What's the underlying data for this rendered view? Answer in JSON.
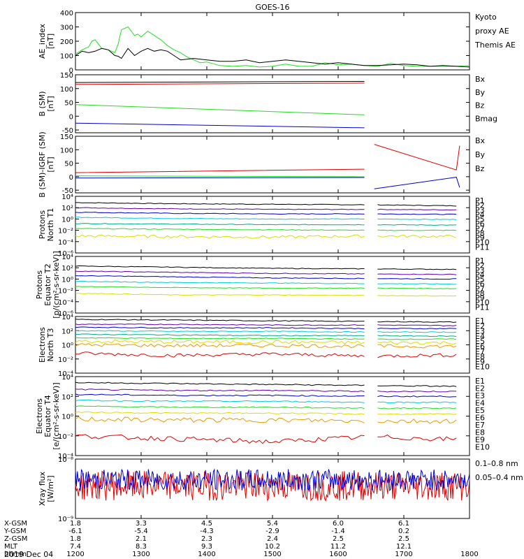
{
  "title": "GOES-16",
  "date_label": "2019 Dec 04",
  "colors": {
    "black": "#000000",
    "red": "#e00000",
    "green": "#22dd22",
    "blue": "#0000cc",
    "cyan": "#00ccdd",
    "teal": "#00aa88",
    "yellow": "#dddd00",
    "orange": "#ee9900",
    "magenta": "#aa0088",
    "purple": "#6600aa",
    "ltgreen": "#88ee00"
  },
  "chart_data": [
    {
      "type": "line",
      "ylabel": [
        "AE_index",
        "[nT]"
      ],
      "ylim": [
        0,
        400
      ],
      "yticks": [
        "0",
        "100",
        "200",
        "300",
        "400"
      ],
      "legend": [
        {
          "text": "Kyoto",
          "color": "green"
        },
        {
          "text": "proxy AE",
          "color": "green"
        },
        {
          "text": "Themis AE",
          "color": "black"
        }
      ],
      "series": [
        {
          "color": "green",
          "x": [
            1200,
            1210,
            1220,
            1225,
            1230,
            1240,
            1250,
            1260,
            1265,
            1270,
            1280,
            1290,
            1295,
            1300,
            1305,
            1310,
            1320,
            1330,
            1340,
            1350,
            1360,
            1370,
            1380,
            1390,
            1400,
            1420,
            1440,
            1460,
            1480,
            1500,
            1520,
            1540,
            1560,
            1580,
            1600,
            1620,
            1640,
            1660,
            1680,
            1700,
            1720,
            1740,
            1760,
            1780,
            1800
          ],
          "y": [
            110,
            140,
            160,
            200,
            210,
            150,
            140,
            120,
            180,
            280,
            300,
            240,
            250,
            230,
            250,
            270,
            240,
            210,
            170,
            140,
            120,
            90,
            70,
            50,
            55,
            30,
            25,
            30,
            20,
            25,
            40,
            25,
            25,
            50,
            35,
            40,
            30,
            25,
            45,
            30,
            25,
            25,
            25,
            25,
            30
          ]
        },
        {
          "color": "black",
          "x": [
            1200,
            1210,
            1220,
            1230,
            1240,
            1250,
            1260,
            1265,
            1270,
            1280,
            1290,
            1300,
            1310,
            1320,
            1330,
            1340,
            1350,
            1360,
            1380,
            1400,
            1420,
            1440,
            1460,
            1480,
            1500,
            1520,
            1540,
            1560,
            1580,
            1600,
            1620,
            1640,
            1660,
            1680,
            1700,
            1720,
            1740,
            1760,
            1780,
            1800
          ],
          "y": [
            100,
            130,
            120,
            130,
            150,
            140,
            100,
            95,
            80,
            150,
            100,
            130,
            150,
            130,
            140,
            130,
            100,
            70,
            80,
            70,
            60,
            60,
            70,
            50,
            60,
            70,
            60,
            50,
            40,
            50,
            40,
            30,
            30,
            35,
            40,
            35,
            25,
            30,
            25,
            20
          ]
        }
      ]
    },
    {
      "type": "line",
      "ylabel": [
        "B (SM)",
        "[nT]"
      ],
      "ylim": [
        -60,
        150
      ],
      "yticks": [
        "-50",
        "0",
        "50",
        "100",
        "150"
      ],
      "legend": [
        {
          "text": "Bx",
          "color": "blue"
        },
        {
          "text": "By",
          "color": "green"
        },
        {
          "text": "Bz",
          "color": "red"
        },
        {
          "text": "Bmag",
          "color": "black"
        }
      ],
      "series": [
        {
          "color": "black",
          "x": [
            1200,
            1640,
            1650,
            1780
          ],
          "y": [
            122,
            126,
            null,
            128
          ]
        },
        {
          "color": "red",
          "x": [
            1200,
            1640,
            1650,
            1780
          ],
          "y": [
            115,
            120,
            null,
            118
          ]
        },
        {
          "color": "green",
          "x": [
            1200,
            1640,
            1650,
            1780
          ],
          "y": [
            42,
            5,
            null,
            -12
          ]
        },
        {
          "color": "blue",
          "x": [
            1200,
            1640,
            1650,
            1780
          ],
          "y": [
            -25,
            -42,
            null,
            -50
          ]
        }
      ]
    },
    {
      "type": "line",
      "ylabel": [
        "B (SM)-IGRF (SM)",
        "[nT]"
      ],
      "ylim": [
        -60,
        150
      ],
      "yticks": [
        "-50",
        "0",
        "50",
        "100",
        "150"
      ],
      "legend": [
        {
          "text": "Bx",
          "color": "blue"
        },
        {
          "text": "By",
          "color": "green"
        },
        {
          "text": "Bz",
          "color": "red"
        }
      ],
      "series": [
        {
          "color": "red",
          "x": [
            1200,
            1640,
            1650,
            1655,
            1780,
            1785
          ],
          "y": [
            15,
            28,
            null,
            120,
            25,
            115
          ]
        },
        {
          "color": "green",
          "x": [
            1200,
            1640,
            1650,
            1780
          ],
          "y": [
            3,
            0,
            null,
            -3
          ]
        },
        {
          "color": "blue",
          "x": [
            1200,
            1640,
            1650,
            1655,
            1780,
            1785
          ],
          "y": [
            -5,
            -3,
            null,
            -45,
            -2,
            -40
          ]
        }
      ]
    },
    {
      "type": "line",
      "ylabel": [
        "Protons",
        "North T1"
      ],
      "ylog": true,
      "ylim_exp": [
        -6,
        4
      ],
      "yticks": [
        "10⁻⁶",
        "10⁻⁴",
        "10⁻²",
        "10⁰",
        "10²",
        "10⁴"
      ],
      "legend": [
        {
          "text": "P1",
          "color": "black"
        },
        {
          "text": "P2",
          "color": "purple"
        },
        {
          "text": "P3",
          "color": "blue"
        },
        {
          "text": "P4",
          "color": "blue"
        },
        {
          "text": "P5",
          "color": "cyan"
        },
        {
          "text": "P6",
          "color": "teal"
        },
        {
          "text": "P7",
          "color": "green"
        },
        {
          "text": "P8",
          "color": "yellow"
        },
        {
          "text": "P9",
          "color": "orange"
        },
        {
          "text": "P10",
          "color": "red"
        },
        {
          "text": "P11",
          "color": "red"
        }
      ],
      "series": [
        {
          "color": "black",
          "logy": [
            2.9,
            2.7,
            2.6,
            2.5,
            2.3
          ]
        },
        {
          "color": "purple",
          "logy": [
            2.0,
            1.8,
            1.7,
            1.7,
            1.6
          ]
        },
        {
          "color": "blue",
          "logy": [
            1.2,
            1.0,
            0.9,
            0.9,
            0.8
          ]
        },
        {
          "color": "cyan",
          "logy": [
            0.3,
            0.1,
            0.0,
            0.0,
            -0.1
          ]
        },
        {
          "color": "teal",
          "logy": [
            -0.8,
            -0.9,
            -1.0,
            -1.0,
            -1.1
          ]
        },
        {
          "color": "green",
          "logy": [
            -1.7,
            -1.8,
            -1.9,
            -2.0,
            -2.0
          ]
        },
        {
          "color": "yellow",
          "logy": [
            -3.0,
            -3.1,
            -3.2,
            -3.0,
            -3.1
          ]
        }
      ]
    },
    {
      "type": "line",
      "ylabel": [
        "Protons",
        "Equator T2",
        "[p/(cm²-s-sr-keV)]"
      ],
      "ylog": true,
      "ylim_exp": [
        -6,
        4
      ],
      "yticks": [
        "10⁻⁶",
        "10⁻⁴",
        "10⁻²",
        "10⁰",
        "10²",
        "10⁴"
      ],
      "legend": [
        {
          "text": "P1",
          "color": "black"
        },
        {
          "text": "P2",
          "color": "purple"
        },
        {
          "text": "P3",
          "color": "blue"
        },
        {
          "text": "P4",
          "color": "blue"
        },
        {
          "text": "P5",
          "color": "cyan"
        },
        {
          "text": "P6",
          "color": "teal"
        },
        {
          "text": "P7",
          "color": "green"
        },
        {
          "text": "P8",
          "color": "yellow"
        },
        {
          "text": "P9",
          "color": "orange"
        },
        {
          "text": "P10",
          "color": "red"
        },
        {
          "text": "P11",
          "color": "red"
        }
      ],
      "series": [
        {
          "color": "black",
          "logy": [
            2.3,
            2.1,
            1.9,
            1.8,
            1.7
          ]
        },
        {
          "color": "purple",
          "logy": [
            1.4,
            1.2,
            1.0,
            0.9,
            0.8
          ]
        },
        {
          "color": "blue",
          "logy": [
            0.6,
            0.4,
            0.2,
            0.1,
            0.0
          ]
        },
        {
          "color": "cyan",
          "logy": [
            -0.4,
            -0.6,
            -0.7,
            -0.8,
            -0.9
          ]
        },
        {
          "color": "green",
          "logy": [
            -1.3,
            -1.5,
            -1.6,
            -1.6,
            -1.7
          ]
        },
        {
          "color": "yellow",
          "logy": [
            -2.5,
            -2.8,
            -2.8,
            -2.9,
            -3.0
          ]
        }
      ]
    },
    {
      "type": "line",
      "ylabel": [
        "Electrons",
        "North T3"
      ],
      "ylog": true,
      "ylim_exp": [
        -4,
        4
      ],
      "yticks": [
        "10⁻⁴",
        "10⁻²",
        "10⁰",
        "10²",
        "10⁴"
      ],
      "legend": [
        {
          "text": "E1",
          "color": "black"
        },
        {
          "text": "E2",
          "color": "purple"
        },
        {
          "text": "E3",
          "color": "blue"
        },
        {
          "text": "E4",
          "color": "cyan"
        },
        {
          "text": "E5",
          "color": "cyan"
        },
        {
          "text": "E6",
          "color": "green"
        },
        {
          "text": "E7",
          "color": "yellow"
        },
        {
          "text": "E8",
          "color": "orange"
        },
        {
          "text": "E9",
          "color": "red"
        },
        {
          "text": "E10",
          "color": "red"
        }
      ],
      "series": [
        {
          "color": "black",
          "logy": [
            3.6,
            3.5,
            3.4,
            3.3,
            3.2
          ]
        },
        {
          "color": "purple",
          "logy": [
            2.9,
            2.9,
            2.8,
            2.8,
            2.7
          ]
        },
        {
          "color": "blue",
          "logy": [
            2.5,
            2.4,
            2.4,
            2.3,
            2.3
          ]
        },
        {
          "color": "cyan",
          "logy": [
            2.0,
            1.9,
            1.9,
            1.8,
            1.8
          ]
        },
        {
          "color": "teal",
          "logy": [
            1.5,
            1.4,
            1.3,
            1.3,
            1.2
          ]
        },
        {
          "color": "green",
          "logy": [
            1.0,
            0.9,
            0.9,
            0.8,
            0.8
          ]
        },
        {
          "color": "yellow",
          "logy": [
            0.5,
            0.4,
            0.4,
            0.3,
            0.3
          ]
        },
        {
          "color": "orange",
          "logy": [
            0.0,
            -0.1,
            -0.1,
            -0.2,
            -0.2
          ]
        },
        {
          "color": "red",
          "logy": [
            -1.2,
            -1.5,
            -1.3,
            -1.6,
            -1.4
          ]
        }
      ]
    },
    {
      "type": "line",
      "ylabel": [
        "Electrons",
        "Equator T4",
        "[e/(cm²-s-sr-keV)]"
      ],
      "ylog": true,
      "ylim_exp": [
        -4,
        4
      ],
      "yticks": [
        "10⁻⁴",
        "10⁻²",
        "10⁰",
        "10²",
        "10⁴"
      ],
      "legend": [
        {
          "text": "E1",
          "color": "black"
        },
        {
          "text": "E2",
          "color": "purple"
        },
        {
          "text": "E3",
          "color": "blue"
        },
        {
          "text": "E4",
          "color": "cyan"
        },
        {
          "text": "E5",
          "color": "cyan"
        },
        {
          "text": "E6",
          "color": "green"
        },
        {
          "text": "E7",
          "color": "yellow"
        },
        {
          "text": "E8",
          "color": "orange"
        },
        {
          "text": "E9",
          "color": "red"
        },
        {
          "text": "E10",
          "color": "red"
        }
      ],
      "series": [
        {
          "color": "black",
          "logy": [
            3.4,
            3.3,
            3.2,
            3.1,
            3.0
          ]
        },
        {
          "color": "purple",
          "logy": [
            2.7,
            2.6,
            2.6,
            2.5,
            2.5
          ]
        },
        {
          "color": "blue",
          "logy": [
            2.2,
            2.1,
            2.1,
            2.0,
            2.0
          ]
        },
        {
          "color": "cyan",
          "logy": [
            1.6,
            1.5,
            1.5,
            1.4,
            1.4
          ]
        },
        {
          "color": "green",
          "logy": [
            1.0,
            0.9,
            0.9,
            0.8,
            0.8
          ]
        },
        {
          "color": "yellow",
          "logy": [
            0.4,
            0.3,
            0.3,
            0.2,
            0.2
          ]
        },
        {
          "color": "orange",
          "logy": [
            -0.3,
            -0.4,
            -0.4,
            -0.5,
            -0.5
          ]
        },
        {
          "color": "red",
          "logy": [
            -2.0,
            -2.3,
            -2.6,
            -2.1,
            -2.4
          ]
        }
      ]
    },
    {
      "type": "line",
      "ylabel": [
        "Xray flux",
        "[W/m²]"
      ],
      "ylog": true,
      "ylim_exp": [
        -9,
        -8
      ],
      "yticks": [
        "10⁻⁹",
        "10⁻⁸"
      ],
      "legend": [
        {
          "text": "0.1–0.8 nm",
          "color": "red"
        },
        {
          "text": "0.05–0.4 nm",
          "color": "blue"
        }
      ],
      "series": [
        {
          "color": "red",
          "noise": 0.25,
          "base": -8.45
        },
        {
          "color": "blue",
          "noise": 0.18,
          "base": -8.35
        }
      ]
    }
  ],
  "x_axis": {
    "range": [
      1200,
      1800
    ],
    "ticks": [
      1200,
      1300,
      1400,
      1500,
      1600,
      1700,
      1800
    ],
    "row_labels": [
      "X-GSM",
      "Y-GSM",
      "Z-GSM",
      "MLT",
      "hhmm"
    ],
    "rows": [
      [
        "1.8",
        "3.3",
        "4.5",
        "5.4",
        "6.0",
        "6.1",
        ""
      ],
      [
        "-6.1",
        "-5.4",
        "-4.3",
        "-2.9",
        "-1.4",
        "0.2",
        ""
      ],
      [
        "1.8",
        "2.1",
        "2.3",
        "2.4",
        "2.5",
        "2.5",
        ""
      ],
      [
        "7.4",
        "8.3",
        "9.3",
        "10.2",
        "11.2",
        "12.1",
        ""
      ],
      [
        "1200",
        "1300",
        "1400",
        "1500",
        "1600",
        "1700",
        "1800"
      ]
    ]
  }
}
